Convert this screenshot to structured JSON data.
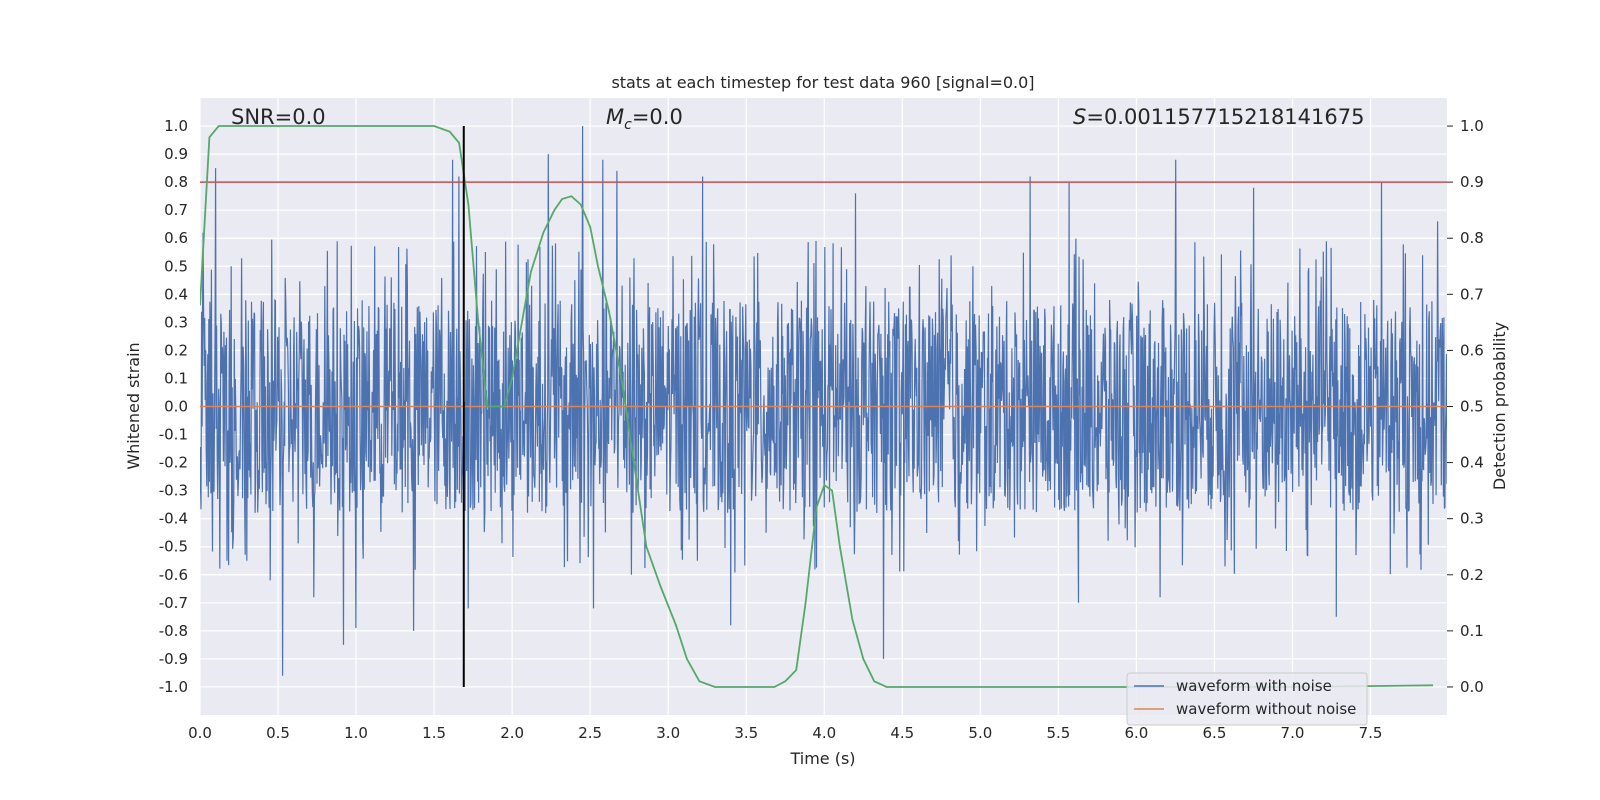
{
  "chart_data": {
    "type": "line",
    "title": "stats at each timestep for test data 960 [signal=0.0]",
    "xlabel": "Time (s)",
    "ylabel_left": "Whitened strain",
    "ylabel_right": "Detection probability",
    "xlim": [
      0.0,
      7.99
    ],
    "ylim_left": [
      -1.1,
      1.1
    ],
    "ylim_right": [
      -0.05,
      1.05
    ],
    "x_ticks": [
      "0.0",
      "0.5",
      "1.0",
      "1.5",
      "2.0",
      "2.5",
      "3.0",
      "3.5",
      "4.0",
      "4.5",
      "5.0",
      "5.5",
      "6.0",
      "6.5",
      "7.0",
      "7.5"
    ],
    "y_left_ticks": [
      "1.0",
      "0.9",
      "0.8",
      "0.7",
      "0.6",
      "0.5",
      "0.4",
      "0.3",
      "0.2",
      "0.1",
      "0.0",
      "-0.1",
      "-0.2",
      "-0.3",
      "-0.4",
      "-0.5",
      "-0.6",
      "-0.7",
      "-0.8",
      "-0.9",
      "-1.0"
    ],
    "y_right_ticks": [
      "1.0",
      "0.9",
      "0.8",
      "0.7",
      "0.6",
      "0.5",
      "0.4",
      "0.3",
      "0.2",
      "0.1",
      "0.0"
    ],
    "annotations": {
      "snr": "SNR=0.0",
      "mc_symbol": "M",
      "mc_sub": "c",
      "mc_value": "=0.0",
      "s_symbol": "S",
      "s_value": "=0.001157715218141675"
    },
    "threshold_probability": 0.9,
    "marker_time": 1.69,
    "noise_waveform": {
      "name": "waveform with noise",
      "color": "#4c72b0",
      "typical_amplitude": 0.38,
      "peaks": [
        [
          0.02,
          0.62
        ],
        [
          0.1,
          0.52
        ],
        [
          0.1,
          -0.48
        ],
        [
          0.1,
          0.85
        ],
        [
          0.2,
          0.5
        ],
        [
          0.3,
          -0.55
        ],
        [
          0.45,
          -0.62
        ],
        [
          0.53,
          -0.96
        ],
        [
          0.73,
          -0.68
        ],
        [
          0.92,
          -0.85
        ],
        [
          1.0,
          -0.79
        ],
        [
          1.37,
          -0.8
        ],
        [
          1.62,
          0.88
        ],
        [
          1.66,
          0.82
        ],
        [
          1.72,
          -0.72
        ],
        [
          2.23,
          0.9
        ],
        [
          2.45,
          1.0
        ],
        [
          2.52,
          -0.72
        ],
        [
          2.58,
          0.88
        ],
        [
          2.67,
          0.84
        ],
        [
          3.4,
          -0.78
        ],
        [
          3.22,
          0.82
        ],
        [
          4.2,
          0.76
        ],
        [
          4.38,
          -0.9
        ],
        [
          5.32,
          0.82
        ],
        [
          5.57,
          0.8
        ],
        [
          5.63,
          -0.7
        ],
        [
          6.15,
          -0.68
        ],
        [
          6.25,
          0.88
        ],
        [
          6.75,
          0.78
        ],
        [
          7.28,
          -0.75
        ],
        [
          7.57,
          0.8
        ],
        [
          7.93,
          0.66
        ]
      ]
    },
    "clean_waveform": {
      "name": "waveform without noise",
      "color": "#dd8452",
      "value": 0.0
    },
    "probability": {
      "name": "detection probability",
      "color": "#55a868",
      "x": [
        0.0,
        0.06,
        0.12,
        0.2,
        0.4,
        0.8,
        1.2,
        1.5,
        1.6,
        1.66,
        1.72,
        1.78,
        1.84,
        1.9,
        1.95,
        2.0,
        2.05,
        2.12,
        2.2,
        2.27,
        2.32,
        2.38,
        2.44,
        2.5,
        2.55,
        2.62,
        2.7,
        2.78,
        2.86,
        2.95,
        3.05,
        3.12,
        3.2,
        3.3,
        3.5,
        3.6,
        3.68,
        3.75,
        3.82,
        3.88,
        3.95,
        4.0,
        4.05,
        4.1,
        4.18,
        4.25,
        4.32,
        4.4,
        4.6,
        5.0,
        6.0,
        7.0,
        7.9
      ],
      "y": [
        0.68,
        0.98,
        1.0,
        1.0,
        1.0,
        1.0,
        1.0,
        1.0,
        0.99,
        0.97,
        0.86,
        0.66,
        0.5,
        0.5,
        0.5,
        0.55,
        0.63,
        0.74,
        0.81,
        0.85,
        0.87,
        0.875,
        0.86,
        0.82,
        0.75,
        0.67,
        0.55,
        0.4,
        0.25,
        0.18,
        0.11,
        0.05,
        0.01,
        0.0,
        0.0,
        0.0,
        0.0,
        0.01,
        0.03,
        0.15,
        0.32,
        0.36,
        0.35,
        0.25,
        0.12,
        0.05,
        0.01,
        0.0,
        0.0,
        0.0,
        0.0,
        0.0,
        0.003
      ]
    },
    "grid": true,
    "legend_placement": "lower-right",
    "legend": [
      "waveform with noise",
      "waveform without noise"
    ]
  }
}
